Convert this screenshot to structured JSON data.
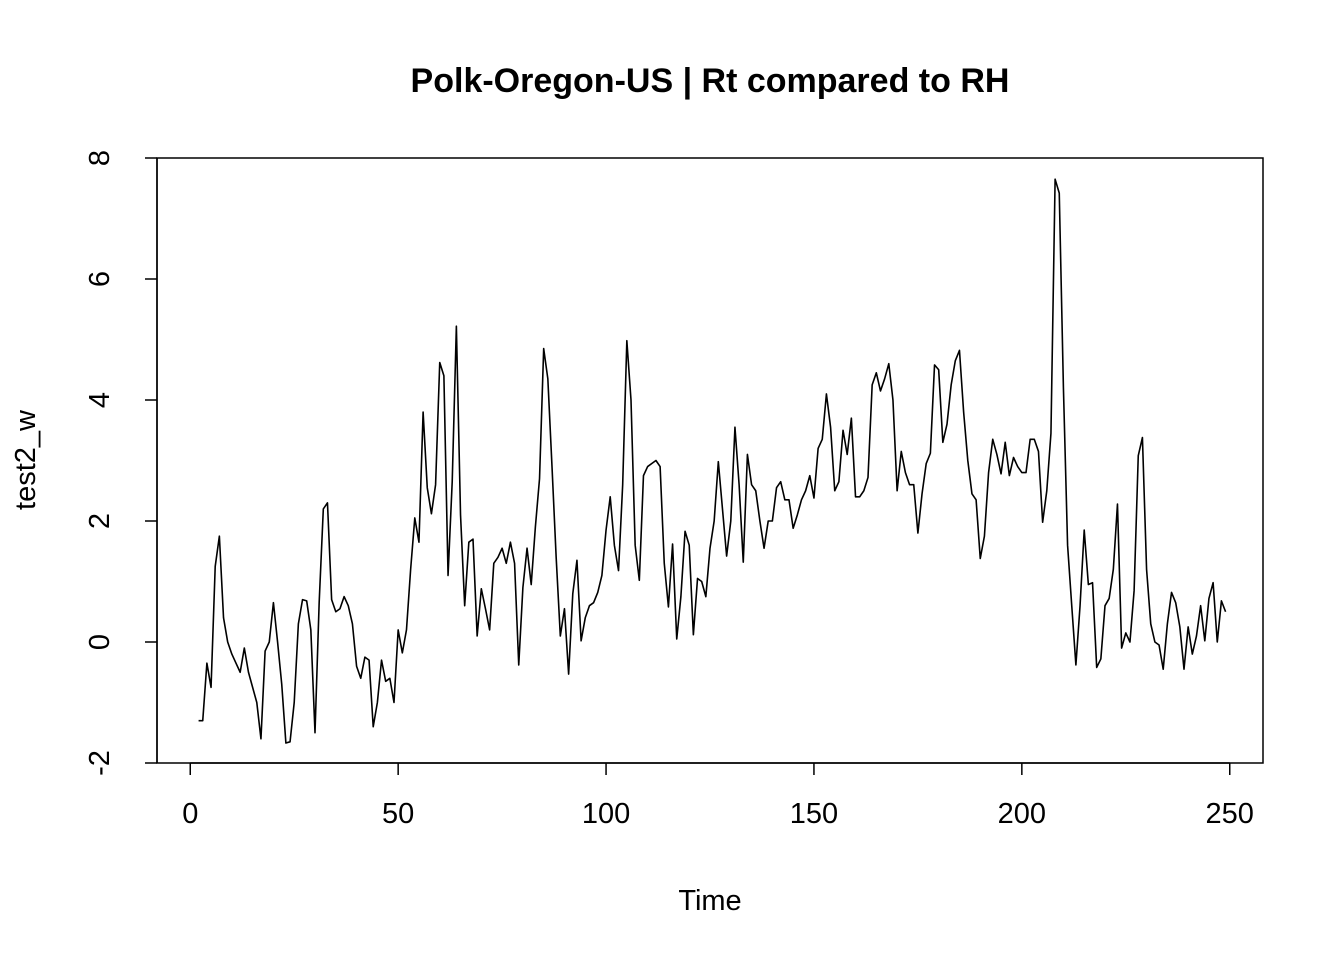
{
  "chart_data": {
    "type": "line",
    "title": "Polk-Oregon-US | Rt compared to RH",
    "xlabel": "Time",
    "ylabel": "test2_w",
    "xlim": [
      -8,
      258
    ],
    "ylim": [
      -2,
      8
    ],
    "xticks": [
      0,
      50,
      100,
      150,
      200,
      250
    ],
    "yticks": [
      -2,
      0,
      2,
      4,
      6,
      8
    ],
    "x_tick_labels": [
      "0",
      "50",
      "100",
      "150",
      "200",
      "250"
    ],
    "y_tick_labels": [
      "-2",
      "0",
      "2",
      "4",
      "6",
      "8"
    ],
    "grid": false,
    "line_color": "#000000",
    "series": [
      {
        "x_start": 2,
        "x_step": 1,
        "values": [
          -1.3,
          -1.3,
          -0.35,
          -0.75,
          1.25,
          1.75,
          0.4,
          0.0,
          -0.2,
          -0.35,
          -0.5,
          -0.1,
          -0.5,
          -0.75,
          -1.0,
          -1.6,
          -0.15,
          0.0,
          0.65,
          0.0,
          -0.7,
          -1.67,
          -1.65,
          -1.0,
          0.3,
          0.7,
          0.68,
          0.2,
          -1.5,
          0.65,
          2.2,
          2.3,
          0.7,
          0.5,
          0.55,
          0.75,
          0.6,
          0.3,
          -0.4,
          -0.6,
          -0.25,
          -0.3,
          -1.4,
          -1.0,
          -0.3,
          -0.65,
          -0.6,
          -1.0,
          0.2,
          -0.18,
          0.2,
          1.2,
          2.05,
          1.65,
          3.8,
          2.55,
          2.12,
          2.6,
          4.62,
          4.4,
          1.1,
          2.65,
          5.22,
          2.1,
          0.6,
          1.65,
          1.7,
          0.1,
          0.88,
          0.55,
          0.2,
          1.3,
          1.4,
          1.55,
          1.3,
          1.65,
          1.3,
          -0.38,
          0.9,
          1.55,
          0.95,
          1.9,
          2.7,
          4.85,
          4.35,
          2.9,
          1.4,
          0.1,
          0.55,
          -0.53,
          0.8,
          1.35,
          0.02,
          0.4,
          0.6,
          0.65,
          0.82,
          1.1,
          1.85,
          2.4,
          1.6,
          1.18,
          2.6,
          4.98,
          4.0,
          1.6,
          1.02,
          2.75,
          2.9,
          2.95,
          3.0,
          2.9,
          1.3,
          0.58,
          1.62,
          0.05,
          0.75,
          1.83,
          1.6,
          0.12,
          1.05,
          1.0,
          0.75,
          1.55,
          2.0,
          2.98,
          2.2,
          1.42,
          2.0,
          3.55,
          2.6,
          1.32,
          3.1,
          2.6,
          2.5,
          2.0,
          1.55,
          2.0,
          2.0,
          2.55,
          2.65,
          2.35,
          2.35,
          1.88,
          2.1,
          2.35,
          2.5,
          2.75,
          2.38,
          3.2,
          3.35,
          4.1,
          3.55,
          2.5,
          2.65,
          3.5,
          3.1,
          3.7,
          2.4,
          2.4,
          2.5,
          2.72,
          4.25,
          4.45,
          4.15,
          4.35,
          4.6,
          4.0,
          2.5,
          3.15,
          2.8,
          2.6,
          2.6,
          1.8,
          2.45,
          2.95,
          3.12,
          4.58,
          4.5,
          3.3,
          3.6,
          4.25,
          4.65,
          4.82,
          3.8,
          3.0,
          2.45,
          2.35,
          1.38,
          1.75,
          2.8,
          3.35,
          3.1,
          2.78,
          3.3,
          2.75,
          3.05,
          2.9,
          2.8,
          2.8,
          3.35,
          3.35,
          3.15,
          1.98,
          2.5,
          3.45,
          7.65,
          7.42,
          4.2,
          1.6,
          0.6,
          -0.38,
          0.6,
          1.85,
          0.95,
          0.98,
          -0.42,
          -0.28,
          0.6,
          0.72,
          1.2,
          2.28,
          -0.1,
          0.15,
          0.0,
          0.85,
          3.08,
          3.38,
          1.2,
          0.3,
          0.0,
          -0.05,
          -0.45,
          0.3,
          0.82,
          0.65,
          0.25,
          -0.45,
          0.25,
          -0.2,
          0.1,
          0.6,
          0.02,
          0.72,
          0.98,
          0.0,
          0.68,
          0.5
        ]
      }
    ]
  }
}
